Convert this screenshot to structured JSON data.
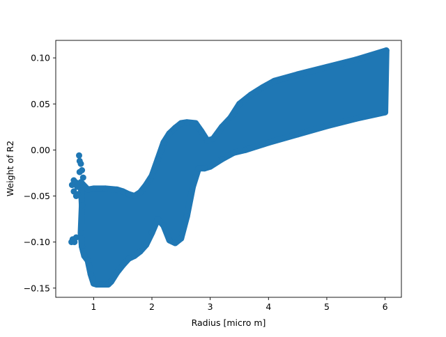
{
  "chart_data": {
    "type": "scatter",
    "title": "",
    "xlabel": "Radius [micro m]",
    "ylabel": "Weight of  R2",
    "xlim": [
      0.35,
      6.28
    ],
    "ylim": [
      -0.16,
      0.119
    ],
    "x_ticks": [
      1,
      2,
      3,
      4,
      5,
      6
    ],
    "y_ticks": [
      -0.15,
      -0.1,
      -0.05,
      0.0,
      0.05,
      0.1
    ],
    "x_tick_labels": [
      "1",
      "2",
      "3",
      "4",
      "5",
      "6"
    ],
    "y_tick_labels": [
      "−0.15",
      "−0.10",
      "−0.05",
      "0.00",
      "0.05",
      "0.10"
    ],
    "grid": false,
    "legend": "none",
    "marker": "circle",
    "color": "#1f77b4",
    "series": [
      {
        "points": [
          [
            0.62,
            -0.1
          ],
          [
            0.64,
            -0.097
          ],
          [
            0.67,
            -0.1
          ],
          [
            0.7,
            -0.095
          ],
          [
            0.66,
            -0.045
          ],
          [
            0.63,
            -0.038
          ],
          [
            0.66,
            -0.033
          ],
          [
            0.69,
            -0.035
          ],
          [
            0.72,
            -0.04
          ],
          [
            0.7,
            -0.05
          ],
          [
            0.73,
            -0.048
          ],
          [
            0.75,
            -0.006
          ],
          [
            0.76,
            -0.012
          ],
          [
            0.78,
            -0.015
          ],
          [
            0.76,
            -0.024
          ],
          [
            0.8,
            -0.022
          ],
          [
            0.82,
            -0.03
          ],
          [
            0.78,
            -0.035
          ],
          [
            0.8,
            -0.06
          ],
          [
            0.78,
            -0.09
          ],
          [
            0.8,
            -0.105
          ],
          [
            0.82,
            -0.11
          ],
          [
            0.84,
            -0.115
          ],
          [
            0.9,
            -0.12
          ],
          [
            0.95,
            -0.135
          ],
          [
            1.0,
            -0.145
          ],
          [
            1.05,
            -0.146
          ],
          [
            1.1,
            -0.146
          ],
          [
            1.15,
            -0.146
          ],
          [
            1.2,
            -0.146
          ],
          [
            1.25,
            -0.146
          ],
          [
            1.3,
            -0.143
          ],
          [
            1.4,
            -0.133
          ],
          [
            1.5,
            -0.125
          ],
          [
            1.6,
            -0.118
          ],
          [
            1.7,
            -0.115
          ],
          [
            1.8,
            -0.11
          ],
          [
            1.9,
            -0.103
          ],
          [
            2.0,
            -0.09
          ],
          [
            2.1,
            -0.075
          ],
          [
            2.2,
            -0.082
          ],
          [
            2.3,
            -0.098
          ],
          [
            2.4,
            -0.101
          ],
          [
            2.5,
            -0.096
          ],
          [
            2.6,
            -0.072
          ],
          [
            2.7,
            -0.04
          ],
          [
            2.8,
            -0.02
          ],
          [
            2.9,
            -0.02
          ],
          [
            3.0,
            -0.018
          ],
          [
            3.2,
            -0.01
          ],
          [
            3.4,
            -0.003
          ],
          [
            3.6,
            0.0
          ],
          [
            3.8,
            0.004
          ],
          [
            4.0,
            0.008
          ],
          [
            4.5,
            0.017
          ],
          [
            5.0,
            0.026
          ],
          [
            5.5,
            0.034
          ],
          [
            6.0,
            0.041
          ],
          [
            6.02,
            0.108
          ],
          [
            5.5,
            0.098
          ],
          [
            5.0,
            0.09
          ],
          [
            4.5,
            0.082
          ],
          [
            4.1,
            0.075
          ],
          [
            3.9,
            0.068
          ],
          [
            3.7,
            0.06
          ],
          [
            3.5,
            0.05
          ],
          [
            3.35,
            0.035
          ],
          [
            3.2,
            0.025
          ],
          [
            3.05,
            0.012
          ],
          [
            2.95,
            0.01
          ],
          [
            2.85,
            0.02
          ],
          [
            2.75,
            0.029
          ],
          [
            2.6,
            0.03
          ],
          [
            2.5,
            0.029
          ],
          [
            2.4,
            0.024
          ],
          [
            2.3,
            0.018
          ],
          [
            2.2,
            0.008
          ],
          [
            2.1,
            -0.01
          ],
          [
            2.0,
            -0.028
          ],
          [
            1.9,
            -0.038
          ],
          [
            1.8,
            -0.046
          ],
          [
            1.7,
            -0.05
          ],
          [
            1.6,
            -0.048
          ],
          [
            1.5,
            -0.045
          ],
          [
            1.4,
            -0.043
          ],
          [
            1.2,
            -0.042
          ],
          [
            1.0,
            -0.042
          ],
          [
            0.9,
            -0.043
          ]
        ]
      }
    ]
  }
}
